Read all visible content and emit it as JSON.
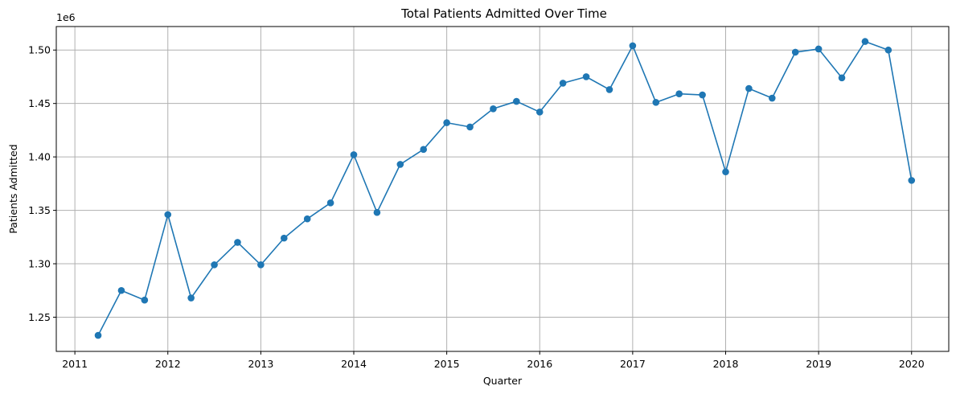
{
  "chart_data": {
    "type": "line",
    "title": "Total Patients Admitted Over Time",
    "xlabel": "Quarter",
    "ylabel": "Patients Admitted",
    "y_offset_label": "1e6",
    "grid": true,
    "color": "#1f77b4",
    "x_ticks": [
      "2011",
      "2012",
      "2013",
      "2014",
      "2015",
      "2016",
      "2017",
      "2018",
      "2019",
      "2020"
    ],
    "y_ticks": [
      "1.25",
      "1.30",
      "1.35",
      "1.40",
      "1.45",
      "1.50"
    ],
    "xlim": [
      2010.8,
      2020.4
    ],
    "ylim": [
      1.218,
      1.522
    ],
    "series": [
      {
        "x": [
          2011.25,
          2011.5,
          2011.75,
          2012.0,
          2012.25,
          2012.5,
          2012.75,
          2013.0,
          2013.25,
          2013.5,
          2013.75,
          2014.0,
          2014.25,
          2014.5,
          2014.75,
          2015.0,
          2015.25,
          2015.5,
          2015.75,
          2016.0,
          2016.25,
          2016.5,
          2016.75,
          2017.0,
          2017.25,
          2017.5,
          2017.75,
          2018.0,
          2018.25,
          2018.5,
          2018.75,
          2019.0,
          2019.25,
          2019.5,
          2019.75,
          2020.0
        ],
        "values": [
          1.233,
          1.275,
          1.266,
          1.346,
          1.268,
          1.299,
          1.32,
          1.299,
          1.324,
          1.342,
          1.357,
          1.402,
          1.348,
          1.393,
          1.407,
          1.432,
          1.428,
          1.445,
          1.452,
          1.442,
          1.469,
          1.475,
          1.463,
          1.504,
          1.451,
          1.459,
          1.458,
          1.386,
          1.464,
          1.455,
          1.498,
          1.501,
          1.474,
          1.508,
          1.5,
          1.378
        ]
      }
    ]
  }
}
